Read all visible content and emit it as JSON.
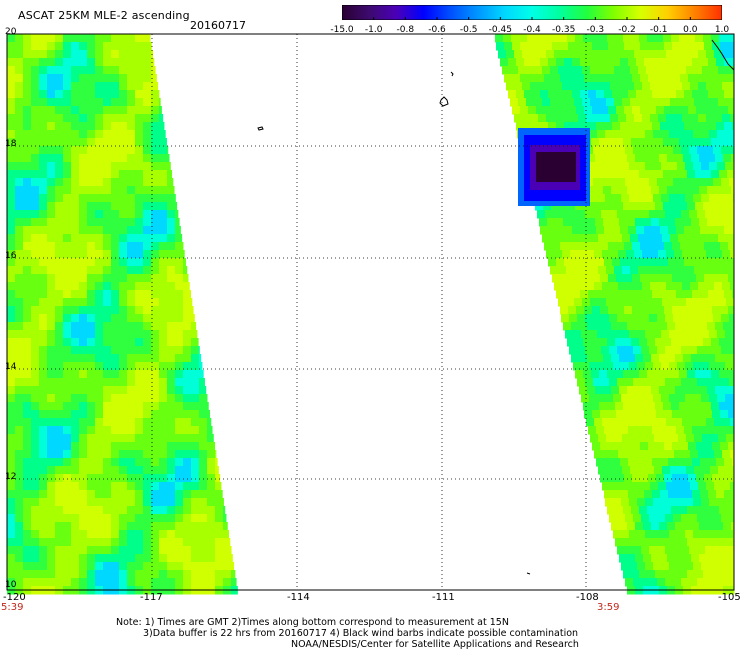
{
  "header": {
    "title": "ASCAT 25KM MLE-2 ascending",
    "date": "20160717"
  },
  "colorbar": {
    "colors": [
      "#2a0033",
      "#3d0a6e",
      "#4b00b8",
      "#0000ff",
      "#0050ff",
      "#0096ff",
      "#00d8ff",
      "#00ffe6",
      "#00ffa0",
      "#20ff40",
      "#80ff00",
      "#d8ff00",
      "#ffd000",
      "#ff8000",
      "#ff3000"
    ],
    "labels": [
      "-15.0",
      "-1.0",
      "-0.8",
      "-0.6",
      "-0.5",
      "-0.45",
      "-0.4",
      "-0.35",
      "-0.3",
      "-0.2",
      "-0.1",
      "0.0",
      "1.0"
    ]
  },
  "map": {
    "lon_range": [
      -120,
      -105
    ],
    "lat_range": [
      10,
      20
    ],
    "lon_ticks": [
      "-120",
      "-117",
      "-114",
      "-111",
      "-108",
      "-105"
    ],
    "lat_ticks": [
      "20",
      "18",
      "16",
      "14",
      "12",
      "10"
    ],
    "times": [
      "5:39",
      "3:59"
    ]
  },
  "notes": [
    "Note: 1) Times are GMT 2)Times along bottom correspond to measurement at 15N",
    "3)Data buffer is 22 hrs from 20160717 4) Black wind barbs indicate possible contamination",
    "NOAA/NESDIS/Center for Satellite Applications and Research"
  ]
}
